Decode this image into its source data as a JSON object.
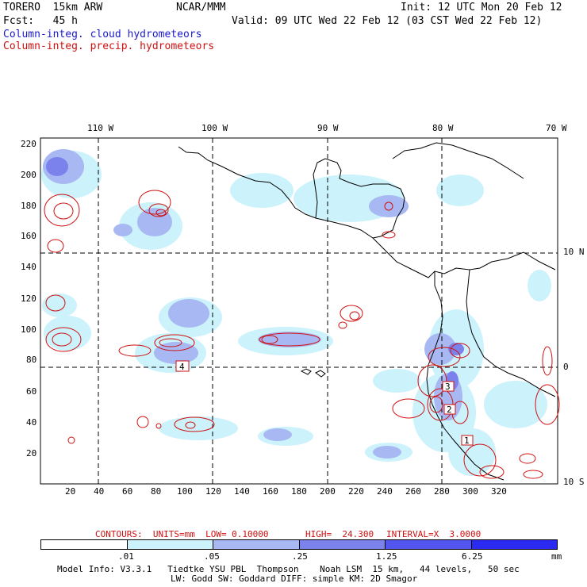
{
  "header": {
    "model": "TORERO  15km ARW",
    "org": "NCAR/MMM",
    "init": "Init: 12 UTC Mon 20 Feb 12",
    "fcst": "Fcst:   45 h",
    "valid": "Valid: 09 UTC Wed 22 Feb 12 (03 CST Wed 22 Feb 12)",
    "field1": "Column-integ. cloud hydrometeors",
    "field2": "Column-integ. precip. hydrometeors"
  },
  "colors": {
    "cloud_field_text": "#1a1acc",
    "precip_field_text": "#d01010",
    "contour": "#d01010",
    "land_outline": "#000000"
  },
  "map": {
    "lon_labels": [
      "110 W",
      "100 W",
      "90 W",
      "80 W",
      "70 W"
    ],
    "lat_labels": [
      "10 N",
      "0",
      "10 S"
    ],
    "y_ticks": [
      "220",
      "200",
      "180",
      "160",
      "140",
      "120",
      "100",
      "80",
      "60",
      "40",
      "20"
    ],
    "x_ticks": [
      "20",
      "40",
      "60",
      "80",
      "100",
      "120",
      "140",
      "160",
      "180",
      "200",
      "220",
      "240",
      "260",
      "280",
      "300",
      "320"
    ],
    "box_labels": [
      "4",
      "3",
      "2",
      "1"
    ]
  },
  "contours_info": {
    "label": "CONTOURS:  UNITS=mm  LOW= 0.10000",
    "high": "HIGH=  24.300",
    "interval": "INTERVAL=X  3.0000"
  },
  "legend": {
    "ticks": [
      ".01",
      ".05",
      ".25",
      "1.25",
      "6.25"
    ],
    "unit": "mm",
    "colors": [
      "#ffffff",
      "#ccf2fb",
      "#a8b8f2",
      "#7b82ec",
      "#5356ee",
      "#2a2af0"
    ]
  },
  "footer": {
    "line1": "Model Info: V3.3.1   Tiedtke YSU PBL  Thompson    Noah LSM  15 km,   44 levels,   50 sec",
    "line2": "LW: Godd SW: Goddard DIFF: simple KM: 2D Smagor"
  }
}
